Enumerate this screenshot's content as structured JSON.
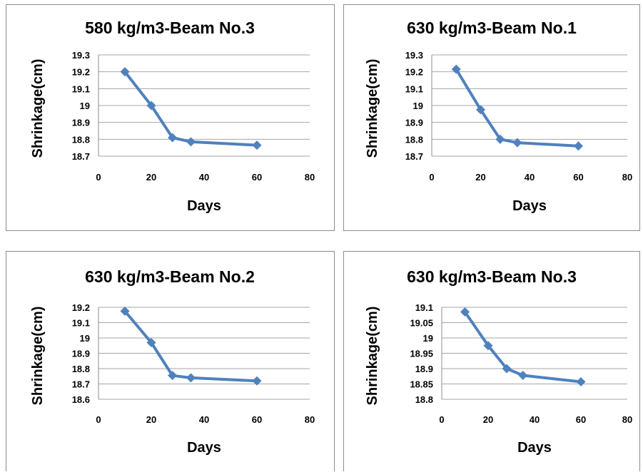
{
  "chart_data": [
    {
      "type": "line",
      "title": "580 kg/m3-Beam No.3",
      "xlabel": "Days",
      "ylabel": "Shrinkage(cm)",
      "xlim": [
        0,
        80
      ],
      "ylim": [
        18.7,
        19.3
      ],
      "xticks": [
        "0",
        "20",
        "40",
        "60",
        "80"
      ],
      "yticks": [
        "18.7",
        "18.8",
        "18.9",
        "19",
        "19.1",
        "19.2",
        "19.3"
      ],
      "grid": true,
      "color": "#4f81bd",
      "series": [
        {
          "x": [
            10,
            20,
            28,
            35,
            60
          ],
          "y": [
            19.2,
            19.0,
            18.81,
            18.785,
            18.765
          ]
        }
      ]
    },
    {
      "type": "line",
      "title": "630 kg/m3-Beam No.1",
      "xlabel": "Days",
      "ylabel": "Shrinkage(cm)",
      "xlim": [
        0,
        80
      ],
      "ylim": [
        18.7,
        19.3
      ],
      "xticks": [
        "0",
        "20",
        "40",
        "60",
        "80"
      ],
      "yticks": [
        "18.7",
        "18.8",
        "18.9",
        "19",
        "19.1",
        "19.2",
        "19.3"
      ],
      "grid": true,
      "color": "#4f81bd",
      "series": [
        {
          "x": [
            10,
            20,
            28,
            35,
            60
          ],
          "y": [
            19.215,
            18.975,
            18.8,
            18.78,
            18.76
          ]
        }
      ]
    },
    {
      "type": "line",
      "title": "630 kg/m3-Beam No.2",
      "xlabel": "Days",
      "ylabel": "Shrinkage(cm)",
      "xlim": [
        0,
        80
      ],
      "ylim": [
        18.6,
        19.2
      ],
      "xticks": [
        "0",
        "20",
        "40",
        "60",
        "80"
      ],
      "yticks": [
        "18.6",
        "18.7",
        "18.8",
        "18.9",
        "19",
        "19.1",
        "19.2"
      ],
      "grid": true,
      "color": "#4f81bd",
      "series": [
        {
          "x": [
            10,
            20,
            28,
            35,
            60
          ],
          "y": [
            19.175,
            18.97,
            18.755,
            18.74,
            18.72
          ]
        }
      ]
    },
    {
      "type": "line",
      "title": "630 kg/m3-Beam No.3",
      "xlabel": "Days",
      "ylabel": "Shrinkage(cm)",
      "xlim": [
        0,
        80
      ],
      "ylim": [
        18.8,
        19.1
      ],
      "xticks": [
        "0",
        "20",
        "40",
        "60",
        "80"
      ],
      "yticks": [
        "18.8",
        "18.85",
        "18.9",
        "18.95",
        "19",
        "19.05",
        "19.1"
      ],
      "grid": true,
      "color": "#4f81bd",
      "series": [
        {
          "x": [
            10,
            20,
            28,
            35,
            60
          ],
          "y": [
            19.085,
            18.975,
            18.9,
            18.878,
            18.857
          ]
        }
      ]
    }
  ]
}
